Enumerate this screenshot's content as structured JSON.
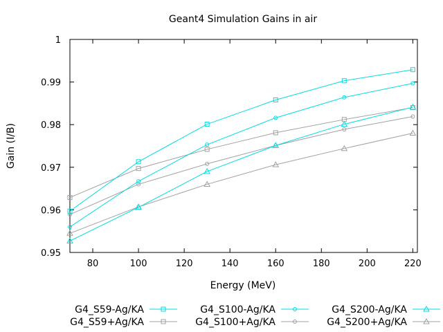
{
  "chart_data": {
    "type": "line",
    "title": "Geant4 Simulation Gains in air",
    "xlabel": "Energy (MeV)",
    "ylabel": "Gain (I/B)",
    "xlim": [
      70,
      222
    ],
    "ylim": [
      0.95,
      1.0
    ],
    "x_ticks": [
      80,
      100,
      120,
      140,
      160,
      180,
      200,
      220
    ],
    "y_ticks": [
      0.95,
      0.96,
      0.97,
      0.98,
      0.99,
      1.0
    ],
    "y_tick_labels": [
      "0.95",
      "0.96",
      "0.97",
      "0.98",
      "0.99",
      "1"
    ],
    "grid": false,
    "legend_position": "bottom",
    "x": [
      70,
      100,
      130,
      160,
      190,
      220
    ],
    "series": [
      {
        "name": "G4_S59-Ag/KA",
        "color": "#00dde0",
        "marker": "square",
        "values": [
          0.9597,
          0.9713,
          0.9801,
          0.9858,
          0.9903,
          0.9929
        ]
      },
      {
        "name": "G4_S100-Ag/KA",
        "color": "#00dde0",
        "marker": "circle",
        "values": [
          0.956,
          0.9667,
          0.9753,
          0.9816,
          0.9864,
          0.9897
        ]
      },
      {
        "name": "G4_S200-Ag/KA",
        "color": "#00dde0",
        "marker": "triangle",
        "values": [
          0.9527,
          0.9606,
          0.969,
          0.9751,
          0.9801,
          0.9841
        ]
      },
      {
        "name": "G4_S59+Ag/KA",
        "color": "#a0a0a0",
        "marker": "square",
        "values": [
          0.9629,
          0.9697,
          0.9742,
          0.9781,
          0.9812,
          0.984
        ]
      },
      {
        "name": "G4_S100+Ag/KA",
        "color": "#a0a0a0",
        "marker": "circle",
        "values": [
          0.9589,
          0.966,
          0.9708,
          0.9751,
          0.9789,
          0.9819
        ]
      },
      {
        "name": "G4_S200+Ag/KA",
        "color": "#a0a0a0",
        "marker": "triangle",
        "values": [
          0.9545,
          0.9607,
          0.966,
          0.9706,
          0.9744,
          0.978
        ]
      }
    ]
  }
}
